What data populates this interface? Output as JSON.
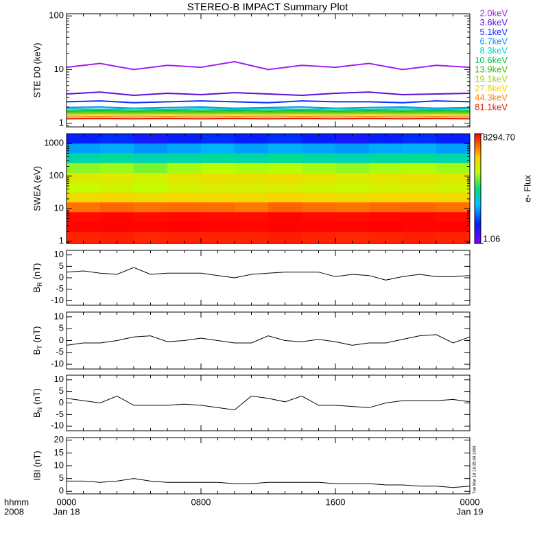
{
  "title": "STEREO-B IMPACT Summary Plot",
  "x_axis": {
    "xlim": [
      0,
      24
    ],
    "xticks": [
      {
        "value": 0,
        "label": "0000"
      },
      {
        "value": 8,
        "label": "0800"
      },
      {
        "value": 16,
        "label": "1600"
      },
      {
        "value": 24,
        "label": "0000"
      }
    ],
    "row_label": "hhmm",
    "year_label": "2008",
    "start_date": "Jan 18",
    "end_date": "Jan 19"
  },
  "timestamp": "Tue Mar 18 18:35:49 2008",
  "chart_data": [
    {
      "type": "line",
      "ylabel": "STE D0 (keV)",
      "log_y": true,
      "ylim": [
        0.85,
        110
      ],
      "yticks": [
        1,
        10,
        100
      ],
      "x": [
        0,
        2,
        4,
        6,
        8,
        10,
        12,
        14,
        16,
        18,
        20,
        22,
        24
      ],
      "series": [
        {
          "name": "2.0keV",
          "color": "#a020f0",
          "values": [
            11,
            13,
            10,
            12,
            11,
            14,
            10,
            12,
            11,
            13,
            10,
            12,
            11
          ]
        },
        {
          "name": "3.6keV",
          "color": "#5a10d8",
          "values": [
            3.5,
            3.8,
            3.3,
            3.6,
            3.4,
            3.7,
            3.5,
            3.3,
            3.6,
            3.8,
            3.4,
            3.5,
            3.6
          ]
        },
        {
          "name": "5.1keV",
          "color": "#1030ff",
          "values": [
            2.5,
            2.6,
            2.4,
            2.5,
            2.6,
            2.5,
            2.4,
            2.6,
            2.5,
            2.5,
            2.4,
            2.6,
            2.5
          ]
        },
        {
          "name": "6.7keV",
          "color": "#0090ff",
          "values": [
            1.95,
            2,
            1.9,
            1.95,
            2,
            1.9,
            1.95,
            2,
            1.9,
            1.95,
            2,
            1.9,
            1.95
          ]
        },
        {
          "name": "8.3keV",
          "color": "#00d0c0",
          "values": [
            1.85,
            1.8,
            1.85,
            1.8,
            1.85,
            1.8,
            1.85,
            1.8,
            1.85,
            1.8,
            1.85,
            1.8,
            1.85
          ]
        },
        {
          "name": "10.6keV",
          "color": "#00c040",
          "values": [
            1.7,
            1.72,
            1.7,
            1.72,
            1.7,
            1.72,
            1.7,
            1.72,
            1.7,
            1.72,
            1.7,
            1.72,
            1.7
          ]
        },
        {
          "name": "13.9keV",
          "color": "#30c000",
          "values": [
            1.6,
            1.62,
            1.6,
            1.62,
            1.6,
            1.62,
            1.6,
            1.62,
            1.6,
            1.62,
            1.6,
            1.62,
            1.6
          ]
        },
        {
          "name": "19.1keV",
          "color": "#a0d000",
          "values": [
            1.5,
            1.52,
            1.5,
            1.52,
            1.5,
            1.52,
            1.5,
            1.52,
            1.5,
            1.52,
            1.5,
            1.52,
            1.5
          ]
        },
        {
          "name": "27.8keV",
          "color": "#f0d000",
          "values": [
            1.4,
            1.42,
            1.4,
            1.42,
            1.4,
            1.42,
            1.4,
            1.42,
            1.4,
            1.42,
            1.4,
            1.42,
            1.4
          ]
        },
        {
          "name": "44.3keV",
          "color": "#ff8000",
          "values": [
            1.3,
            1.32,
            1.3,
            1.32,
            1.3,
            1.32,
            1.3,
            1.32,
            1.3,
            1.32,
            1.3,
            1.32,
            1.3
          ]
        },
        {
          "name": "81.1keV",
          "color": "#e02000",
          "values": [
            1.2,
            1.22,
            1.2,
            1.22,
            1.2,
            1.22,
            1.2,
            1.22,
            1.2,
            1.22,
            1.2,
            1.22,
            1.2
          ]
        }
      ]
    },
    {
      "type": "heatmap",
      "ylabel": "SWEA (eV)",
      "log_y": true,
      "ylim": [
        0.85,
        2000
      ],
      "yticks": [
        1,
        10,
        100,
        1000
      ],
      "x_edges": [
        0,
        2,
        4,
        6,
        8,
        10,
        12,
        14,
        16,
        18,
        20,
        22,
        24
      ],
      "y_edges": [
        0.85,
        2,
        4,
        8,
        16,
        32,
        64,
        128,
        256,
        512,
        1024,
        2000
      ],
      "z": [
        [
          6000,
          6200,
          5800,
          6100,
          6000,
          5900,
          6300,
          6100,
          5800,
          6000,
          6200,
          6000
        ],
        [
          8000,
          8100,
          7900,
          8200,
          8000,
          7800,
          8100,
          8000,
          7900,
          8200,
          8000,
          8100
        ],
        [
          7500,
          7800,
          7400,
          7700,
          7600,
          7500,
          7900,
          7600,
          7400,
          7700,
          7800,
          7500
        ],
        [
          2800,
          3200,
          2900,
          3100,
          3000,
          2700,
          3300,
          3000,
          2800,
          3100,
          3200,
          2900
        ],
        [
          900,
          1000,
          850,
          950,
          900,
          880,
          1000,
          920,
          870,
          950,
          980,
          900
        ],
        [
          400,
          450,
          380,
          500,
          550,
          520,
          560,
          480,
          420,
          500,
          540,
          470
        ],
        [
          600,
          650,
          500,
          700,
          800,
          750,
          820,
          700,
          600,
          720,
          780,
          680
        ],
        [
          250,
          280,
          220,
          300,
          350,
          320,
          340,
          300,
          260,
          310,
          330,
          290
        ],
        [
          60,
          70,
          55,
          65,
          70,
          60,
          75,
          65,
          55,
          68,
          72,
          62
        ],
        [
          18,
          20,
          16,
          19,
          22,
          18,
          21,
          19,
          17,
          20,
          21,
          18
        ],
        [
          5,
          6,
          4,
          5,
          6,
          5,
          6,
          5,
          4,
          5,
          6,
          5
        ]
      ],
      "zlim": [
        1.06,
        8294.7
      ],
      "zticks": [
        {
          "value": 8294.7,
          "label": "8294.70"
        },
        1.06
      ],
      "zlabel": "e- Flux"
    },
    {
      "type": "line",
      "ylabel": "B",
      "ylabel_sub": "R",
      "ylabel_unit": "(nT)",
      "ylim": [
        -12,
        12
      ],
      "yticks": [
        -10,
        -5,
        0,
        5,
        10
      ],
      "x": [
        0,
        1,
        2,
        3,
        4,
        5,
        6,
        7,
        8,
        9,
        10,
        11,
        12,
        13,
        14,
        15,
        16,
        17,
        18,
        19,
        20,
        21,
        22,
        23,
        24
      ],
      "series": [
        {
          "color": "#000000",
          "values": [
            2.5,
            3,
            2,
            1.5,
            4.5,
            1.5,
            2,
            2,
            2,
            1,
            0,
            1.5,
            2,
            2.5,
            2.5,
            2.5,
            0.5,
            1.5,
            1,
            -1,
            0.5,
            1.5,
            0.5,
            0.5,
            1
          ]
        }
      ]
    },
    {
      "type": "line",
      "ylabel": "B",
      "ylabel_sub": "T",
      "ylabel_unit": "(nT)",
      "ylim": [
        -12,
        12
      ],
      "yticks": [
        -10,
        -5,
        0,
        5,
        10
      ],
      "x": [
        0,
        1,
        2,
        3,
        4,
        5,
        6,
        7,
        8,
        9,
        10,
        11,
        12,
        13,
        14,
        15,
        16,
        17,
        18,
        19,
        20,
        21,
        22,
        23,
        24
      ],
      "series": [
        {
          "color": "#000000",
          "values": [
            -2,
            -1,
            -1,
            0,
            1.5,
            2,
            -0.5,
            0,
            1,
            0,
            -1,
            -1,
            2,
            0,
            -0.5,
            0.5,
            -0.5,
            -2,
            -1,
            -1,
            0.5,
            2,
            2.5,
            -1,
            1.5
          ]
        }
      ]
    },
    {
      "type": "line",
      "ylabel": "B",
      "ylabel_sub": "N",
      "ylabel_unit": "(nT)",
      "ylim": [
        -12,
        12
      ],
      "yticks": [
        -10,
        -5,
        0,
        5,
        10
      ],
      "x": [
        0,
        1,
        2,
        3,
        4,
        5,
        6,
        7,
        8,
        9,
        10,
        11,
        12,
        13,
        14,
        15,
        16,
        17,
        18,
        19,
        20,
        21,
        22,
        23,
        24
      ],
      "series": [
        {
          "color": "#000000",
          "values": [
            2,
            1,
            0,
            3,
            -1,
            -1,
            -1,
            -0.5,
            -1,
            -2,
            -3,
            3,
            2,
            0.5,
            3,
            -1,
            -1,
            -1.5,
            -2,
            0,
            1,
            1,
            1,
            1.5,
            0.5
          ]
        }
      ]
    },
    {
      "type": "line",
      "ylabel": "IBI (nT)",
      "ylim": [
        -1,
        21
      ],
      "yticks": [
        0,
        5,
        10,
        15,
        20
      ],
      "x": [
        0,
        1,
        2,
        3,
        4,
        5,
        6,
        7,
        8,
        9,
        10,
        11,
        12,
        13,
        14,
        15,
        16,
        17,
        18,
        19,
        20,
        21,
        22,
        23,
        24
      ],
      "series": [
        {
          "color": "#000000",
          "values": [
            4,
            4,
            3.5,
            4,
            5,
            4,
            3.5,
            3.5,
            3.5,
            3.5,
            3,
            3,
            3.5,
            3.5,
            3.5,
            3.5,
            3,
            3,
            3,
            2.5,
            2.5,
            2,
            2,
            1.5,
            2
          ]
        }
      ]
    }
  ]
}
